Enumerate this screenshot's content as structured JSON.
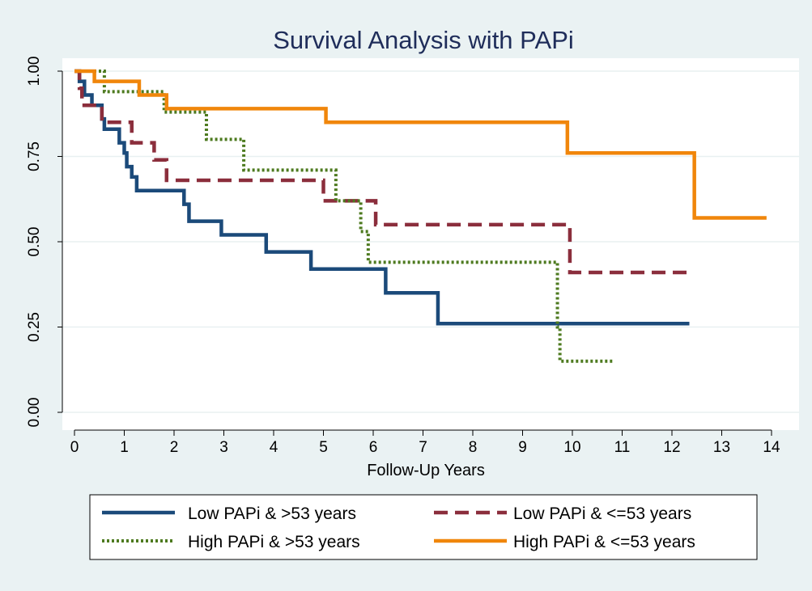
{
  "chart_data": {
    "type": "line",
    "step": true,
    "title": "Survival Analysis with PAPi",
    "xlabel": "Follow-Up Years",
    "ylabel": "",
    "xlim": [
      0,
      14
    ],
    "ylim": [
      0,
      1
    ],
    "xticks": [
      "0",
      "1",
      "2",
      "3",
      "4",
      "5",
      "6",
      "7",
      "8",
      "9",
      "10",
      "11",
      "12",
      "13",
      "14"
    ],
    "yticks": [
      "0.00",
      "0.25",
      "0.50",
      "0.75",
      "1.00"
    ],
    "grid": "horizontal",
    "legend_position": "bottom",
    "colors": {
      "background": "#eaf2f3",
      "plot_area": "#ffffff",
      "grid": "#e8f0f1",
      "title": "#1f2d5a"
    },
    "series": [
      {
        "name": "Low PAPi & >53 years",
        "color": "#1b4a7a",
        "dash": "solid",
        "points": [
          [
            0,
            1.0
          ],
          [
            0.1,
            0.97
          ],
          [
            0.2,
            0.93
          ],
          [
            0.35,
            0.9
          ],
          [
            0.55,
            0.86
          ],
          [
            0.6,
            0.83
          ],
          [
            0.9,
            0.79
          ],
          [
            1.0,
            0.76
          ],
          [
            1.05,
            0.72
          ],
          [
            1.15,
            0.69
          ],
          [
            1.25,
            0.65
          ],
          [
            2.2,
            0.61
          ],
          [
            2.3,
            0.56
          ],
          [
            2.95,
            0.52
          ],
          [
            3.85,
            0.47
          ],
          [
            4.75,
            0.42
          ],
          [
            6.25,
            0.35
          ],
          [
            7.3,
            0.26
          ],
          [
            12.35,
            0.26
          ]
        ]
      },
      {
        "name": "Low PAPi & <=53 years",
        "color": "#8b2e3c",
        "dash": "dashed",
        "points": [
          [
            0,
            1.0
          ],
          [
            0.1,
            0.95
          ],
          [
            0.15,
            0.9
          ],
          [
            0.55,
            0.85
          ],
          [
            1.0,
            0.85
          ],
          [
            1.15,
            0.79
          ],
          [
            1.6,
            0.74
          ],
          [
            1.85,
            0.68
          ],
          [
            5.0,
            0.62
          ],
          [
            6.05,
            0.55
          ],
          [
            9.95,
            0.41
          ],
          [
            12.35,
            0.41
          ]
        ]
      },
      {
        "name": "High PAPi & >53 years",
        "color": "#4d7a1f",
        "dash": "dotted",
        "points": [
          [
            0,
            1.0
          ],
          [
            0.6,
            0.94
          ],
          [
            1.8,
            0.88
          ],
          [
            2.65,
            0.8
          ],
          [
            3.4,
            0.71
          ],
          [
            5.25,
            0.62
          ],
          [
            5.75,
            0.53
          ],
          [
            5.9,
            0.44
          ],
          [
            9.7,
            0.25
          ],
          [
            9.75,
            0.15
          ],
          [
            10.85,
            0.15
          ]
        ]
      },
      {
        "name": "High PAPi & <=53 years",
        "color": "#f0860b",
        "dash": "solid",
        "points": [
          [
            0,
            1.0
          ],
          [
            0.4,
            0.97
          ],
          [
            1.3,
            0.93
          ],
          [
            1.85,
            0.89
          ],
          [
            5.05,
            0.85
          ],
          [
            9.9,
            0.76
          ],
          [
            12.45,
            0.57
          ],
          [
            13.9,
            0.57
          ]
        ]
      }
    ]
  }
}
